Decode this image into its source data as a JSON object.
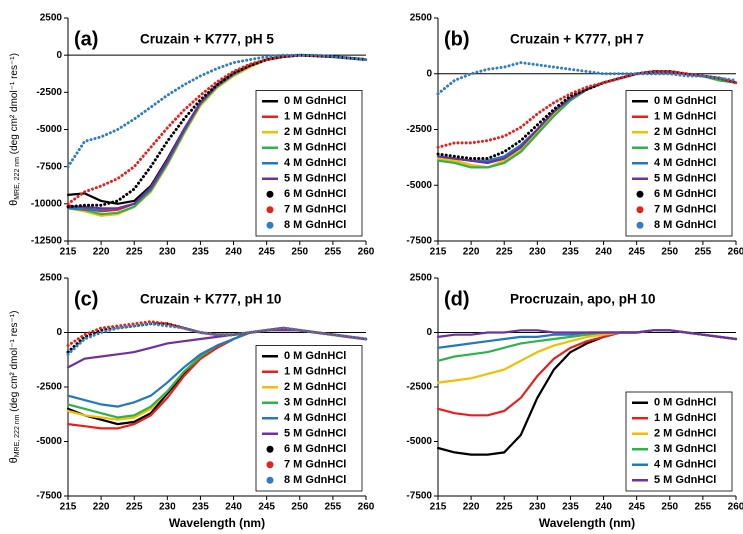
{
  "chart_data": [
    {
      "type": "line",
      "panel_label": "(a)",
      "title": "Cruzain + K777, pH 5",
      "y_label": {
        "symbol": "θ",
        "subscript": "MRE, 222 nm",
        "units": " (deg cm² dmol⁻¹ res⁻¹)"
      },
      "x": [
        215,
        217.5,
        220,
        222.5,
        225,
        227.5,
        230,
        232.5,
        235,
        237.5,
        240,
        242.5,
        245,
        247.5,
        250,
        252.5,
        255,
        257.5,
        260
      ],
      "xlim": [
        215,
        260
      ],
      "xticks": [
        215,
        220,
        225,
        230,
        235,
        240,
        245,
        250,
        255,
        260
      ],
      "ylim": [
        -12500,
        2500
      ],
      "yticks": [
        2500,
        0,
        -2500,
        -5000,
        -7500,
        -10000,
        -12500
      ],
      "legend": "lower right",
      "series": [
        {
          "name": "0 M GdnHCl",
          "color": "#000000",
          "style": "solid",
          "values": [
            -9400,
            -9300,
            -9800,
            -10000,
            -9800,
            -8800,
            -7000,
            -5000,
            -3200,
            -2100,
            -1300,
            -700,
            -300,
            -100,
            0,
            -50,
            -100,
            -200,
            -300
          ]
        },
        {
          "name": "1 M GdnHCl",
          "color": "#e8201c",
          "style": "solid",
          "values": [
            -10100,
            -10300,
            -10500,
            -10400,
            -10000,
            -9000,
            -7300,
            -5200,
            -3300,
            -2100,
            -1300,
            -700,
            -300,
            -100,
            0,
            -50,
            -100,
            -200,
            -300
          ]
        },
        {
          "name": "2 M GdnHCl",
          "color": "#f2bf00",
          "style": "solid",
          "values": [
            -10300,
            -10500,
            -10800,
            -10700,
            -10200,
            -9200,
            -7400,
            -5300,
            -3400,
            -2200,
            -1400,
            -800,
            -300,
            -100,
            0,
            -50,
            -100,
            -200,
            -300
          ]
        },
        {
          "name": "3 M GdnHCl",
          "color": "#2db34a",
          "style": "solid",
          "values": [
            -10200,
            -10400,
            -10700,
            -10600,
            -10200,
            -9100,
            -7300,
            -5200,
            -3300,
            -2100,
            -1300,
            -700,
            -300,
            -100,
            0,
            -50,
            -100,
            -200,
            -300
          ]
        },
        {
          "name": "4 M GdnHCl",
          "color": "#2478bd",
          "style": "solid",
          "values": [
            -10300,
            -10400,
            -10400,
            -10300,
            -10000,
            -9000,
            -7200,
            -5100,
            -3200,
            -2100,
            -1300,
            -700,
            -300,
            -100,
            0,
            -50,
            -100,
            -200,
            -300
          ]
        },
        {
          "name": "5 M GdnHCl",
          "color": "#7030a0",
          "style": "solid",
          "values": [
            -10200,
            -10200,
            -10300,
            -10300,
            -10000,
            -8900,
            -7100,
            -5000,
            -3200,
            -2000,
            -1200,
            -700,
            -300,
            -100,
            0,
            -50,
            -100,
            -200,
            -300
          ]
        },
        {
          "name": "6 M GdnHCl",
          "color": "#000000",
          "style": "dotted",
          "values": [
            -10200,
            -10100,
            -10100,
            -9800,
            -9000,
            -7500,
            -5800,
            -4300,
            -3000,
            -2000,
            -1200,
            -700,
            -300,
            -100,
            0,
            -50,
            -100,
            -200,
            -300
          ]
        },
        {
          "name": "7 M GdnHCl",
          "color": "#e8201c",
          "style": "dotted",
          "values": [
            -10000,
            -9200,
            -8800,
            -8300,
            -7500,
            -6200,
            -4900,
            -3700,
            -2700,
            -1800,
            -1100,
            -600,
            -300,
            -100,
            0,
            -50,
            -100,
            -200,
            -300
          ]
        },
        {
          "name": "8 M GdnHCl",
          "color": "#2e7fc1",
          "style": "dotted",
          "values": [
            -7500,
            -5800,
            -5500,
            -5000,
            -4300,
            -3500,
            -2700,
            -2000,
            -1400,
            -900,
            -500,
            -300,
            -100,
            0,
            0,
            0,
            -100,
            -200,
            -300
          ]
        }
      ]
    },
    {
      "type": "line",
      "panel_label": "(b)",
      "title": "Cruzain + K777, pH 7",
      "x": [
        215,
        217.5,
        220,
        222.5,
        225,
        227.5,
        230,
        232.5,
        235,
        237.5,
        240,
        242.5,
        245,
        247.5,
        250,
        252.5,
        255,
        257.5,
        260
      ],
      "xlim": [
        215,
        260
      ],
      "xticks": [
        215,
        220,
        225,
        230,
        235,
        240,
        245,
        250,
        255,
        260
      ],
      "ylim": [
        -7500,
        2500
      ],
      "yticks": [
        2500,
        0,
        -2500,
        -5000,
        -7500
      ],
      "legend": "lower right",
      "series": [
        {
          "name": "0 M GdnHCl",
          "color": "#000000",
          "style": "solid",
          "values": [
            -3700,
            -3800,
            -3900,
            -4000,
            -3800,
            -3300,
            -2500,
            -1700,
            -1100,
            -700,
            -400,
            -200,
            0,
            100,
            100,
            0,
            -100,
            -200,
            -400
          ]
        },
        {
          "name": "1 M GdnHCl",
          "color": "#e8201c",
          "style": "solid",
          "values": [
            -3800,
            -3900,
            -4100,
            -4200,
            -4000,
            -3500,
            -2700,
            -1800,
            -1100,
            -700,
            -400,
            -200,
            0,
            100,
            100,
            0,
            -100,
            -300,
            -400
          ]
        },
        {
          "name": "2 M GdnHCl",
          "color": "#f2bf00",
          "style": "solid",
          "values": [
            -3800,
            -3900,
            -4100,
            -4200,
            -3900,
            -3400,
            -2600,
            -1800,
            -1100,
            -700,
            -400,
            -200,
            0,
            100,
            100,
            0,
            -100,
            -300,
            -400
          ]
        },
        {
          "name": "3 M GdnHCl",
          "color": "#2db34a",
          "style": "solid",
          "values": [
            -3900,
            -4000,
            -4200,
            -4200,
            -4000,
            -3500,
            -2700,
            -1900,
            -1200,
            -700,
            -400,
            -200,
            0,
            100,
            100,
            0,
            -100,
            -300,
            -400
          ]
        },
        {
          "name": "4 M GdnHCl",
          "color": "#2478bd",
          "style": "solid",
          "values": [
            -3700,
            -3800,
            -3900,
            -3900,
            -3700,
            -3200,
            -2500,
            -1700,
            -1100,
            -700,
            -400,
            -200,
            0,
            100,
            100,
            0,
            -100,
            -200,
            -400
          ]
        },
        {
          "name": "5 M GdnHCl",
          "color": "#7030a0",
          "style": "solid",
          "values": [
            -3700,
            -3800,
            -3900,
            -4000,
            -3800,
            -3300,
            -2500,
            -1700,
            -1100,
            -700,
            -400,
            -200,
            0,
            100,
            100,
            0,
            -100,
            -200,
            -400
          ]
        },
        {
          "name": "6 M GdnHCl",
          "color": "#000000",
          "style": "dotted",
          "values": [
            -3600,
            -3700,
            -3800,
            -3800,
            -3500,
            -3000,
            -2300,
            -1600,
            -1000,
            -700,
            -400,
            -200,
            0,
            100,
            100,
            0,
            -100,
            -200,
            -400
          ]
        },
        {
          "name": "7 M GdnHCl",
          "color": "#e8201c",
          "style": "dotted",
          "values": [
            -3300,
            -3100,
            -3100,
            -3000,
            -2800,
            -2400,
            -1800,
            -1300,
            -900,
            -600,
            -400,
            -200,
            0,
            100,
            100,
            0,
            -100,
            -200,
            -400
          ]
        },
        {
          "name": "8 M GdnHCl",
          "color": "#2e7fc1",
          "style": "dotted",
          "values": [
            -900,
            -300,
            0,
            200,
            300,
            500,
            400,
            300,
            200,
            100,
            0,
            0,
            0,
            0,
            0,
            -100,
            -100,
            -200,
            -300
          ]
        }
      ]
    },
    {
      "type": "line",
      "panel_label": "(c)",
      "title": "Cruzain + K777, pH 10",
      "y_label": {
        "symbol": "θ",
        "subscript": "MRE, 222 nm",
        "units": " (deg cm² dmol⁻¹ res⁻¹)"
      },
      "x_label": "Wavelength (nm)",
      "x": [
        215,
        217.5,
        220,
        222.5,
        225,
        227.5,
        230,
        232.5,
        235,
        237.5,
        240,
        242.5,
        245,
        247.5,
        250,
        252.5,
        255,
        257.5,
        260
      ],
      "xlim": [
        215,
        260
      ],
      "xticks": [
        215,
        220,
        225,
        230,
        235,
        240,
        245,
        250,
        255,
        260
      ],
      "ylim": [
        -7500,
        2500
      ],
      "yticks": [
        2500,
        0,
        -2500,
        -5000,
        -7500
      ],
      "legend": "lower right",
      "series": [
        {
          "name": "0 M GdnHCl",
          "color": "#000000",
          "style": "solid",
          "values": [
            -3500,
            -3800,
            -4000,
            -4200,
            -4100,
            -3700,
            -2800,
            -1900,
            -1200,
            -700,
            -300,
            0,
            100,
            200,
            100,
            0,
            -100,
            -200,
            -300
          ]
        },
        {
          "name": "1 M GdnHCl",
          "color": "#e8201c",
          "style": "solid",
          "values": [
            -4200,
            -4300,
            -4400,
            -4400,
            -4200,
            -3800,
            -3000,
            -2000,
            -1200,
            -700,
            -300,
            0,
            100,
            200,
            100,
            0,
            -100,
            -200,
            -300
          ]
        },
        {
          "name": "2 M GdnHCl",
          "color": "#f2bf00",
          "style": "solid",
          "values": [
            -3600,
            -3800,
            -3900,
            -4000,
            -3900,
            -3500,
            -2700,
            -1800,
            -1100,
            -600,
            -300,
            0,
            100,
            200,
            100,
            0,
            -100,
            -200,
            -300
          ]
        },
        {
          "name": "3 M GdnHCl",
          "color": "#2db34a",
          "style": "solid",
          "values": [
            -3300,
            -3500,
            -3700,
            -3900,
            -3800,
            -3400,
            -2700,
            -1800,
            -1100,
            -600,
            -300,
            0,
            100,
            200,
            100,
            0,
            -100,
            -200,
            -300
          ]
        },
        {
          "name": "4 M GdnHCl",
          "color": "#2478bd",
          "style": "solid",
          "values": [
            -2900,
            -3100,
            -3300,
            -3400,
            -3200,
            -2900,
            -2300,
            -1600,
            -1000,
            -600,
            -300,
            0,
            100,
            200,
            100,
            0,
            -100,
            -200,
            -300
          ]
        },
        {
          "name": "5 M GdnHCl",
          "color": "#7030a0",
          "style": "solid",
          "values": [
            -1600,
            -1200,
            -1100,
            -1000,
            -900,
            -700,
            -500,
            -400,
            -300,
            -200,
            -100,
            0,
            100,
            100,
            100,
            0,
            -100,
            -200,
            -300
          ]
        },
        {
          "name": "6 M GdnHCl",
          "color": "#000000",
          "style": "dotted",
          "values": [
            -900,
            -200,
            100,
            200,
            300,
            400,
            400,
            200,
            0,
            -100,
            -100,
            0,
            100,
            200,
            100,
            0,
            -100,
            -200,
            -300
          ]
        },
        {
          "name": "7 M GdnHCl",
          "color": "#e8201c",
          "style": "dotted",
          "values": [
            -600,
            -100,
            200,
            300,
            400,
            500,
            400,
            200,
            0,
            -100,
            -100,
            0,
            100,
            200,
            100,
            0,
            -100,
            -200,
            -300
          ]
        },
        {
          "name": "8 M GdnHCl",
          "color": "#2e7fc1",
          "style": "dotted",
          "values": [
            -1000,
            -300,
            0,
            200,
            300,
            400,
            300,
            200,
            0,
            -100,
            -100,
            0,
            100,
            200,
            100,
            0,
            -100,
            -200,
            -300
          ]
        }
      ]
    },
    {
      "type": "line",
      "panel_label": "(d)",
      "title": "Procruzain, apo, pH 10",
      "x_label": "Wavelength (nm)",
      "x": [
        215,
        217.5,
        220,
        222.5,
        225,
        227.5,
        230,
        232.5,
        235,
        237.5,
        240,
        242.5,
        245,
        247.5,
        250,
        252.5,
        255,
        257.5,
        260
      ],
      "xlim": [
        215,
        260
      ],
      "xticks": [
        215,
        220,
        225,
        230,
        235,
        240,
        245,
        250,
        255,
        260
      ],
      "ylim": [
        -7500,
        2500
      ],
      "yticks": [
        2500,
        0,
        -2500,
        -5000,
        -7500
      ],
      "legend": "lower right",
      "series": [
        {
          "name": "0 M GdnHCl",
          "color": "#000000",
          "style": "solid",
          "values": [
            -5300,
            -5500,
            -5600,
            -5600,
            -5500,
            -4700,
            -3000,
            -1700,
            -900,
            -500,
            -200,
            0,
            0,
            100,
            100,
            0,
            -100,
            -200,
            -300
          ]
        },
        {
          "name": "1 M GdnHCl",
          "color": "#e8201c",
          "style": "solid",
          "values": [
            -3500,
            -3700,
            -3800,
            -3800,
            -3600,
            -3000,
            -2000,
            -1200,
            -700,
            -400,
            -200,
            0,
            0,
            100,
            100,
            0,
            -100,
            -200,
            -300
          ]
        },
        {
          "name": "2 M GdnHCl",
          "color": "#f2bf00",
          "style": "solid",
          "values": [
            -2300,
            -2200,
            -2100,
            -1900,
            -1700,
            -1300,
            -900,
            -600,
            -400,
            -200,
            -100,
            0,
            0,
            100,
            100,
            0,
            -100,
            -200,
            -300
          ]
        },
        {
          "name": "3 M GdnHCl",
          "color": "#2db34a",
          "style": "solid",
          "values": [
            -1300,
            -1100,
            -1000,
            -900,
            -700,
            -500,
            -400,
            -300,
            -200,
            -100,
            0,
            0,
            0,
            100,
            100,
            0,
            -100,
            -200,
            -300
          ]
        },
        {
          "name": "4 M GdnHCl",
          "color": "#2478bd",
          "style": "solid",
          "values": [
            -700,
            -600,
            -500,
            -400,
            -300,
            -200,
            -200,
            -100,
            -100,
            0,
            0,
            0,
            0,
            100,
            100,
            0,
            -100,
            -200,
            -300
          ]
        },
        {
          "name": "5 M GdnHCl",
          "color": "#7030a0",
          "style": "solid",
          "values": [
            -200,
            -100,
            -100,
            0,
            0,
            100,
            100,
            0,
            0,
            0,
            0,
            0,
            0,
            100,
            100,
            0,
            -100,
            -200,
            -300
          ]
        }
      ]
    }
  ]
}
